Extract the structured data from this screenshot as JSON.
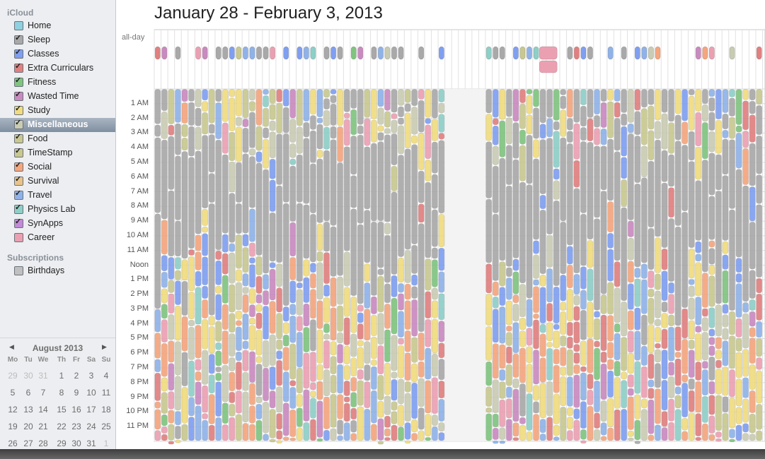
{
  "title": "January 28 - February 3, 2013",
  "allday_label": "all-day",
  "sidebar": {
    "section_icloud": "iCloud",
    "calendars": [
      {
        "label": "Home",
        "color": "#8fd1e0",
        "checked": false
      },
      {
        "label": "Sleep",
        "color": "#a9a9a9",
        "checked": true
      },
      {
        "label": "Classes",
        "color": "#7f9ff0",
        "checked": true
      },
      {
        "label": "Extra Curriculars",
        "color": "#e08080",
        "checked": true
      },
      {
        "label": "Fitness",
        "color": "#7fc47f",
        "checked": true
      },
      {
        "label": "Wasted Time",
        "color": "#c98abf",
        "checked": true
      },
      {
        "label": "Study",
        "color": "#f0dc7f",
        "checked": true
      },
      {
        "label": "Miscellaneous",
        "color": "#c9ccb2",
        "checked": true,
        "selected": true
      },
      {
        "label": "Food",
        "color": "#c8c890",
        "checked": true
      },
      {
        "label": "TimeStamp",
        "color": "#c8c890",
        "checked": true
      },
      {
        "label": "Social",
        "color": "#f4a67e",
        "checked": true
      },
      {
        "label": "Survival",
        "color": "#e8c48a",
        "checked": true
      },
      {
        "label": "Travel",
        "color": "#8fb2e8",
        "checked": true
      },
      {
        "label": "Physics Lab",
        "color": "#8ecfc7",
        "checked": true
      },
      {
        "label": "SynApps",
        "color": "#c38ad8",
        "checked": true
      },
      {
        "label": "Career",
        "color": "#eba0b2",
        "checked": false
      }
    ],
    "section_subscriptions": "Subscriptions",
    "subscriptions": [
      {
        "label": "Birthdays",
        "color": "#c0c0c0",
        "checked": false
      }
    ]
  },
  "mini_calendar": {
    "month": "August 2013",
    "prev": "◀",
    "next": "▶",
    "weekdays": [
      "Mo",
      "Tu",
      "We",
      "Th",
      "Fr",
      "Sa",
      "Su"
    ],
    "weeks": [
      [
        "29",
        "30",
        "31",
        "1",
        "2",
        "3",
        "4"
      ],
      [
        "5",
        "6",
        "7",
        "8",
        "9",
        "10",
        "11"
      ],
      [
        "12",
        "13",
        "14",
        "15",
        "16",
        "17",
        "18"
      ],
      [
        "19",
        "20",
        "21",
        "22",
        "23",
        "24",
        "25"
      ],
      [
        "26",
        "27",
        "28",
        "29",
        "30",
        "31",
        "1"
      ]
    ],
    "dim_first_week": 3,
    "dim_last_week_from": 6
  },
  "hours": [
    "1 AM",
    "2 AM",
    "3 AM",
    "4 AM",
    "5 AM",
    "6 AM",
    "7 AM",
    "8 AM",
    "9 AM",
    "10 AM",
    "11 AM",
    "Noon",
    "1 PM",
    "2 PM",
    "3 PM",
    "4 PM",
    "5 PM",
    "6 PM",
    "7 PM",
    "8 PM",
    "9 PM",
    "10 PM",
    "11 PM"
  ],
  "event_palette": [
    "#a9a9a9",
    "#f0dc7f",
    "#7f9ff0",
    "#e08080",
    "#7fc47f",
    "#c98abf",
    "#c8c890",
    "#f4a67e",
    "#8fb2e8",
    "#c9ccb2",
    "#eba0b2",
    "#8ecfc7"
  ]
}
